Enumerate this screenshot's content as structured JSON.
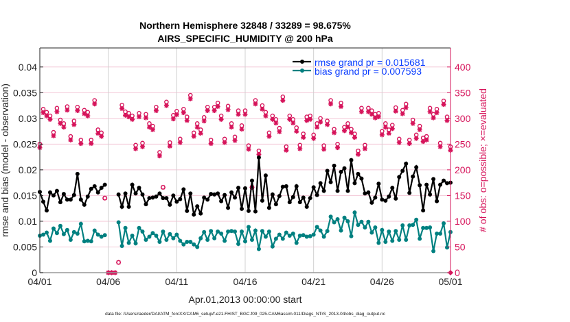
{
  "chart_data": {
    "type": "line",
    "title": [
      "Northern Hemisphere 32848 / 33289 = 98.675%",
      "AIRS_SPECIFIC_HUMIDITY @ 200 hPa"
    ],
    "xlabel": "Apr.01,2013 00:00:00 start",
    "ylabel_left": "rmse and bias (model - observation)",
    "ylabel_right": "# of obs: o=possible; ×=evaluated",
    "footnote": "data file: /Users/raeder/DAI/ATM_forcXX/CAM6_setup/f.e21.FHIST_BGC.f09_025.CAM6assim.011/Diags_NTrS_2013-04/obs_diag_output.nc",
    "x_unit": "days since 04/01 00Z, 6-hourly",
    "x_step_days": 0.25,
    "xlim": [
      0,
      30
    ],
    "xticks": [
      0,
      5,
      10,
      15,
      20,
      25,
      30
    ],
    "xtick_labels": [
      "04/01",
      "04/06",
      "04/11",
      "04/16",
      "04/21",
      "04/26",
      "05/01"
    ],
    "ylim_left": [
      0,
      0.0437
    ],
    "yticks_left": [
      0,
      0.005,
      0.01,
      0.015,
      0.02,
      0.025,
      0.03,
      0.035,
      0.04
    ],
    "ytick_labels_left": [
      "0",
      "0.005",
      "0.01",
      "0.015",
      "0.02",
      "0.025",
      "0.03",
      "0.035",
      "0.04"
    ],
    "ylim_right": [
      0,
      437
    ],
    "yticks_right": [
      0,
      50,
      100,
      150,
      200,
      250,
      300,
      350,
      400
    ],
    "ytick_labels_right": [
      "0",
      "50",
      "100",
      "150",
      "200",
      "250",
      "300",
      "350",
      "400"
    ],
    "grid": true,
    "legend_position": "top-right",
    "colors": {
      "rmse": "#000000",
      "bias": "#008080",
      "obs": "#d6135a",
      "legend_text": "#0a3cff",
      "grid_v": "#d0d0d0",
      "grid_h": "#f3c6d6"
    },
    "series": [
      {
        "name": "rmse",
        "legend": "rmse grand pr = 0.015681",
        "axis": "left",
        "values": [
          0.0157,
          0.0138,
          0.0121,
          0.0156,
          0.015,
          0.0159,
          0.0137,
          0.0153,
          0.0142,
          0.0142,
          0.0151,
          0.0192,
          0.0142,
          0.0132,
          0.0148,
          0.0163,
          0.0168,
          0.0156,
          0.0165,
          0.0171,
          null,
          null,
          null,
          0.0152,
          0.0128,
          0.0154,
          0.0128,
          0.0171,
          0.0154,
          0.0165,
          0.0152,
          0.0133,
          0.0145,
          0.0146,
          0.0148,
          0.0154,
          0.0145,
          0.0145,
          0.0132,
          0.015,
          0.0138,
          0.0143,
          0.0162,
          0.012,
          0.0154,
          0.0113,
          0.0129,
          0.0115,
          0.0146,
          0.0142,
          0.0153,
          0.0152,
          0.0154,
          0.0139,
          0.0151,
          0.0126,
          0.0156,
          0.0146,
          0.0165,
          0.0124,
          0.0164,
          0.012,
          0.0179,
          0.0119,
          0.0224,
          0.014,
          0.0189,
          0.0126,
          0.0152,
          0.0133,
          0.0149,
          0.0167,
          0.0168,
          0.0137,
          0.0147,
          0.0168,
          0.0137,
          0.0146,
          0.0128,
          0.0145,
          0.0166,
          0.0151,
          0.0174,
          0.0159,
          0.0198,
          0.0176,
          0.0208,
          0.0159,
          0.0196,
          0.0203,
          0.0159,
          0.0219,
          0.0174,
          0.0192,
          0.0183,
          0.0154,
          0.0156,
          0.0136,
          0.0146,
          0.0173,
          0.0142,
          0.014,
          0.0148,
          0.0165,
          0.0144,
          0.0186,
          0.0198,
          0.0212,
          0.0155,
          0.0187,
          0.0205,
          0.017,
          0.0121,
          0.0171,
          0.0152,
          0.0182,
          0.0139,
          0.0171,
          0.0179,
          0.0174,
          0.0175
        ]
      },
      {
        "name": "bias",
        "legend": "bias grand pr = 0.007593",
        "axis": "left",
        "values": [
          0.0072,
          0.0074,
          0.0078,
          0.0062,
          0.0086,
          0.0077,
          0.0091,
          0.0075,
          0.0083,
          0.0064,
          0.0079,
          0.0076,
          0.0095,
          0.0061,
          0.0062,
          0.0061,
          0.0082,
          0.0074,
          0.007,
          0.0073,
          null,
          null,
          null,
          0.0098,
          0.0052,
          0.0087,
          0.0058,
          0.0072,
          0.0057,
          0.0087,
          0.008,
          0.0064,
          0.007,
          0.0077,
          0.0072,
          0.006,
          0.008,
          0.0064,
          0.0075,
          0.0067,
          0.0074,
          0.0062,
          0.0055,
          0.006,
          0.006,
          0.0055,
          0.005,
          0.0067,
          0.0079,
          0.0064,
          0.0081,
          0.0067,
          0.008,
          0.0076,
          0.0062,
          0.008,
          0.0081,
          0.008,
          0.0056,
          0.008,
          0.0061,
          0.0089,
          0.0064,
          0.0082,
          0.0046,
          0.0081,
          0.007,
          0.008,
          0.0051,
          0.0066,
          0.0074,
          0.0066,
          0.0078,
          0.0072,
          0.0076,
          0.0058,
          0.0072,
          0.0073,
          0.007,
          0.0071,
          0.0074,
          0.0089,
          0.0082,
          0.007,
          0.0081,
          0.0109,
          0.0098,
          0.0104,
          0.0082,
          0.0107,
          0.01,
          0.0071,
          0.0117,
          0.0093,
          0.0099,
          0.0088,
          0.0099,
          0.0078,
          0.0088,
          0.0058,
          0.0083,
          0.006,
          0.008,
          0.0062,
          0.0081,
          0.0064,
          0.0092,
          0.0064,
          0.0092,
          0.0093,
          0.0103,
          0.0066,
          0.0087,
          0.0087,
          0.0088,
          0.0042,
          0.0076,
          0.0076,
          0.0096,
          0.0049,
          0.0079
        ]
      },
      {
        "name": "possible",
        "marker": "o",
        "axis": "right",
        "values": [
          250,
          318,
          312,
          305,
          273,
          320,
          297,
          290,
          323,
          265,
          295,
          322,
          258,
          316,
          312,
          258,
          335,
          278,
          272,
          145,
          0,
          0,
          0,
          20,
          326,
          313,
          310,
          305,
          248,
          310,
          252,
          308,
          290,
          285,
          322,
          234,
          166,
          332,
          253,
          306,
          314,
          260,
          318,
          303,
          345,
          272,
          290,
          278,
          302,
          322,
          258,
          322,
          330,
          305,
          260,
          324,
          290,
          264,
          315,
          286,
          315,
          247,
          166,
          335,
          237,
          325,
          312,
          272,
          305,
          298,
          281,
          342,
          245,
          305,
          298,
          282,
          248,
          270,
          303,
          305,
          268,
          290,
          300,
          247,
          295,
          335,
          279,
          250,
          330,
          283,
          290,
          279,
          270,
          237,
          320,
          248,
          320,
          315,
          308,
          310,
          275,
          290,
          278,
          287,
          321,
          260,
          316,
          328,
          258,
          297,
          268,
          285,
          262,
          265,
          320,
          308,
          318,
          252,
          334,
          303,
          245
        ]
      },
      {
        "name": "evaluated",
        "marker": "*",
        "axis": "right",
        "values": [
          243,
          311,
          305,
          298,
          266,
          313,
          290,
          283,
          316,
          258,
          288,
          315,
          251,
          309,
          305,
          251,
          328,
          271,
          265,
          145,
          0,
          0,
          0,
          20,
          319,
          306,
          303,
          298,
          241,
          303,
          245,
          301,
          283,
          278,
          315,
          227,
          166,
          325,
          246,
          299,
          307,
          253,
          311,
          296,
          338,
          265,
          283,
          271,
          295,
          315,
          251,
          315,
          323,
          298,
          253,
          317,
          283,
          257,
          308,
          279,
          308,
          240,
          166,
          328,
          230,
          318,
          305,
          265,
          298,
          291,
          274,
          335,
          238,
          298,
          291,
          275,
          241,
          263,
          296,
          298,
          261,
          283,
          293,
          240,
          288,
          328,
          272,
          243,
          323,
          276,
          283,
          272,
          263,
          230,
          313,
          241,
          313,
          308,
          301,
          303,
          268,
          283,
          271,
          280,
          314,
          253,
          309,
          321,
          251,
          290,
          261,
          278,
          255,
          258,
          313,
          301,
          311,
          245,
          327,
          296,
          238
        ]
      }
    ]
  }
}
